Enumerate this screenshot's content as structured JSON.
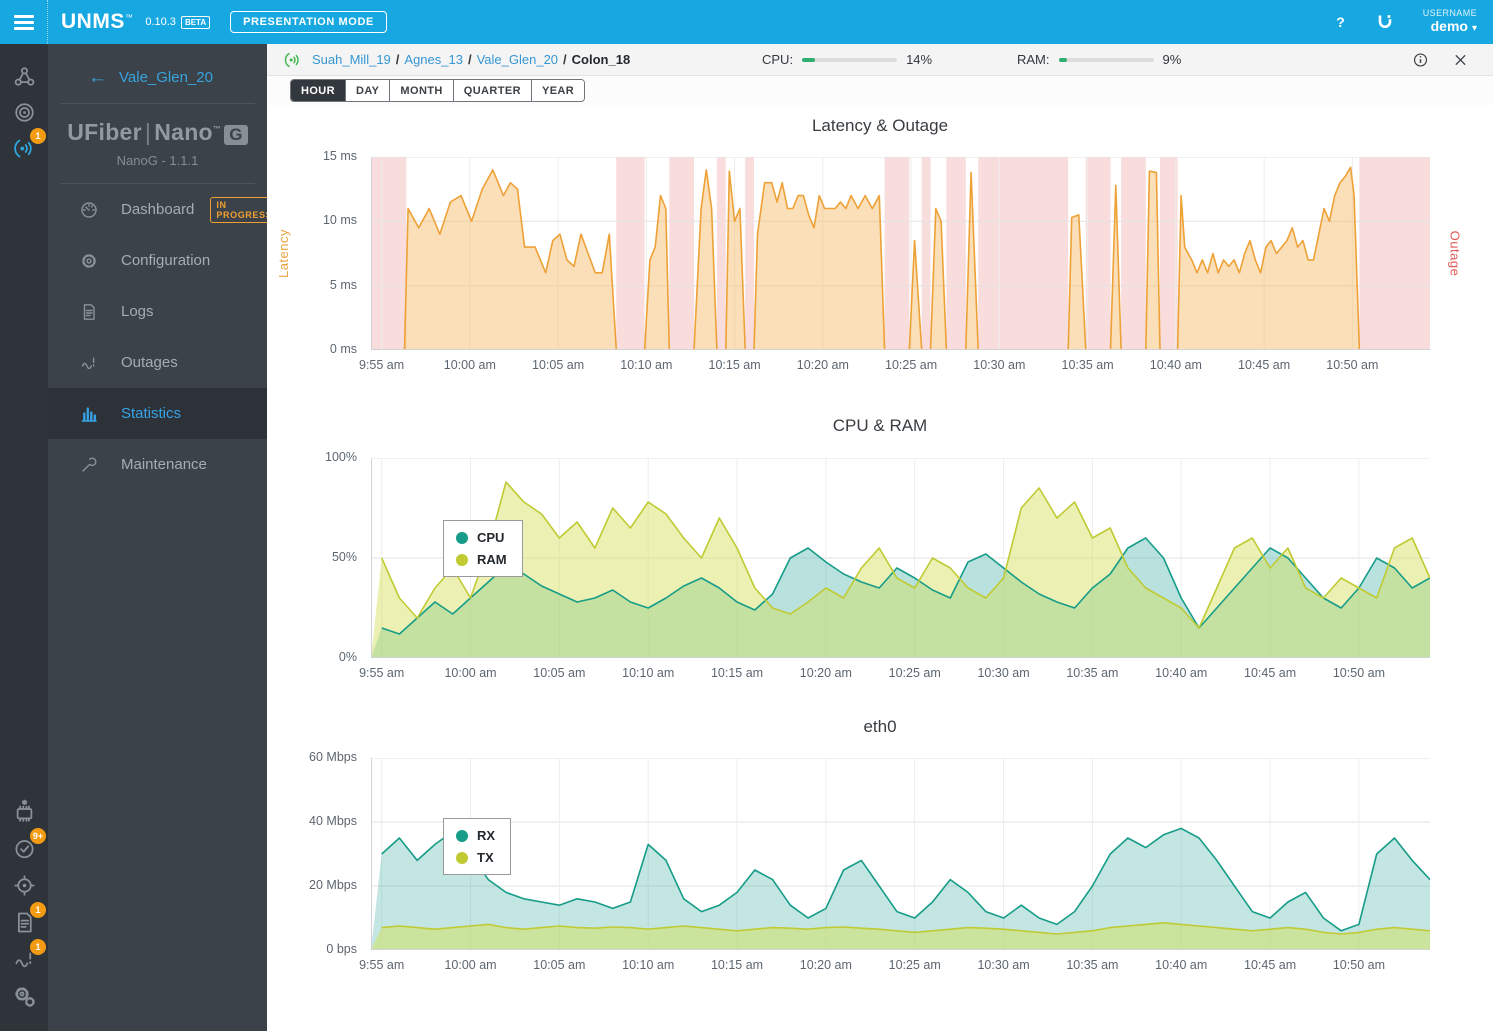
{
  "colors": {
    "topbar_blue": "#18a8e1",
    "badge_orange": "#f29b13",
    "link_blue": "#3596d3",
    "active_blue": "#36a3e8",
    "progress_green": "#2fae71",
    "outage_pink": "#f9dcdc",
    "latency_orange": "#eea136",
    "cpu_teal": "#169c88",
    "ram_yellow": "#c0ca33"
  },
  "topbar": {
    "brand": "UNMS",
    "brand_tm": "™",
    "version": "0.10.3",
    "beta_badge": "BETA",
    "presentation_mode": "PRESENTATION MODE",
    "help": "?",
    "username_label": "USERNAME",
    "username": "demo"
  },
  "sidebar_rail": {
    "top_icons": [
      {
        "name": "sites",
        "icon": "sites"
      },
      {
        "name": "devices",
        "icon": "devices"
      },
      {
        "name": "antenna",
        "icon": "antenna",
        "active": true,
        "badge": "1"
      }
    ],
    "bottom_icons": [
      {
        "name": "firmware",
        "icon": "firmware"
      },
      {
        "name": "tasks",
        "icon": "tasks",
        "badge": "9+"
      },
      {
        "name": "discover",
        "icon": "discover"
      },
      {
        "name": "device-logs",
        "icon": "logs",
        "badge": "1"
      },
      {
        "name": "outages",
        "icon": "outages",
        "badge": "1"
      },
      {
        "name": "settings",
        "icon": "settings"
      }
    ]
  },
  "device_panel": {
    "back_label": "Vale_Glen_20",
    "logo_primary": "UFiber",
    "logo_divider": "|",
    "logo_secondary": "Nano",
    "logo_tm": "™",
    "logo_badge": "G",
    "device_model": "NanoG - 1.1.1",
    "menu": [
      {
        "label": "Dashboard",
        "icon": "dashboard",
        "badge": "IN PROGRESS"
      },
      {
        "label": "Configuration",
        "icon": "configuration"
      },
      {
        "label": "Logs",
        "icon": "logs"
      },
      {
        "label": "Outages",
        "icon": "outages"
      },
      {
        "label": "Statistics",
        "icon": "statistics",
        "active": true
      },
      {
        "label": "Maintenance",
        "icon": "maintenance"
      }
    ]
  },
  "device_header": {
    "breadcrumbs": [
      {
        "label": "Suah_Mill_19",
        "link": true
      },
      {
        "label": "Agnes_13",
        "link": true
      },
      {
        "label": "Vale_Glen_20",
        "link": true
      },
      {
        "label": "Colon_18",
        "link": false
      }
    ],
    "cpu_label": "CPU:",
    "cpu_value": "14%",
    "cpu_percent": 14,
    "ram_label": "RAM:",
    "ram_value": "9%",
    "ram_percent": 9
  },
  "tabs": [
    {
      "label": "HOUR",
      "active": true
    },
    {
      "label": "DAY"
    },
    {
      "label": "MONTH"
    },
    {
      "label": "QUARTER"
    },
    {
      "label": "YEAR"
    }
  ],
  "chart_data": [
    {
      "id": "latency",
      "type": "area",
      "title": "Latency & Outage",
      "ylabel_left": "Latency",
      "ylabel_left_color": "#e8a33d",
      "ylabel_right": "Outage",
      "ylabel_right_color": "#e05a5a",
      "ylim": [
        0,
        15
      ],
      "yticks": [
        {
          "v": 0,
          "label": "0 ms"
        },
        {
          "v": 5,
          "label": "5 ms"
        },
        {
          "v": 10,
          "label": "10 ms"
        },
        {
          "v": 15,
          "label": "15 ms"
        }
      ],
      "x_domain": [
        -0.6,
        59.4
      ],
      "xticks_t": [
        0,
        5,
        10,
        15,
        20,
        25,
        30,
        35,
        40,
        45,
        50,
        55
      ],
      "xtick_labels": [
        "9:55 am",
        "10:00 am",
        "10:05 am",
        "10:10 am",
        "10:15 am",
        "10:20 am",
        "10:25 am",
        "10:30 am",
        "10:35 am",
        "10:40 am",
        "10:45 am",
        "10:50 am"
      ],
      "outage_color": "#f9dcdc",
      "outage_bands": [
        [
          -0.6,
          1.4
        ],
        [
          13.3,
          14.9
        ],
        [
          16.3,
          17.7
        ],
        [
          19.0,
          19.5
        ],
        [
          20.6,
          21.1
        ],
        [
          28.5,
          29.9
        ],
        [
          30.6,
          31.1
        ],
        [
          32.0,
          33.1
        ],
        [
          33.8,
          38.9
        ],
        [
          39.9,
          41.3
        ],
        [
          41.9,
          43.3
        ],
        [
          44.1,
          45.1
        ],
        [
          55.4,
          59.4
        ]
      ],
      "series": [
        {
          "name": "Latency",
          "color": "#eea136",
          "fill": "rgba(247,185,98,0.45)",
          "points": [
            [
              0,
              0
            ],
            [
              1.3,
              0
            ],
            [
              1.5,
              11
            ],
            [
              2.1,
              9.5
            ],
            [
              2.7,
              11
            ],
            [
              3.3,
              9
            ],
            [
              3.9,
              11.5
            ],
            [
              4.5,
              12
            ],
            [
              5.1,
              10
            ],
            [
              5.7,
              12.5
            ],
            [
              6.3,
              14
            ],
            [
              6.9,
              12
            ],
            [
              7.3,
              13
            ],
            [
              7.7,
              12.5
            ],
            [
              8.1,
              8
            ],
            [
              8.7,
              8
            ],
            [
              9.3,
              6
            ],
            [
              9.7,
              8.5
            ],
            [
              10.1,
              9
            ],
            [
              10.5,
              7
            ],
            [
              10.9,
              6.5
            ],
            [
              11.3,
              9
            ],
            [
              11.7,
              7.5
            ],
            [
              12.1,
              6
            ],
            [
              12.5,
              6
            ],
            [
              12.9,
              9
            ],
            [
              13.3,
              0
            ],
            [
              14.9,
              0
            ],
            [
              15.2,
              7
            ],
            [
              15.5,
              8
            ],
            [
              15.8,
              12
            ],
            [
              16.1,
              11
            ],
            [
              16.3,
              0
            ],
            [
              17.7,
              0
            ],
            [
              18.1,
              11
            ],
            [
              18.4,
              14
            ],
            [
              18.7,
              11
            ],
            [
              19,
              0
            ],
            [
              19.5,
              0
            ],
            [
              19.7,
              13.9
            ],
            [
              20,
              10
            ],
            [
              20.3,
              11
            ],
            [
              20.6,
              0
            ],
            [
              21.1,
              0
            ],
            [
              21.3,
              9
            ],
            [
              21.7,
              13
            ],
            [
              22.1,
              13
            ],
            [
              22.4,
              11.5
            ],
            [
              22.7,
              13
            ],
            [
              23,
              11
            ],
            [
              23.3,
              11
            ],
            [
              23.6,
              12
            ],
            [
              23.9,
              12
            ],
            [
              24.2,
              10.5
            ],
            [
              24.5,
              9.5
            ],
            [
              24.8,
              12
            ],
            [
              25.1,
              11
            ],
            [
              25.4,
              11
            ],
            [
              25.7,
              11
            ],
            [
              26,
              11.5
            ],
            [
              26.3,
              11
            ],
            [
              26.6,
              12
            ],
            [
              27,
              11
            ],
            [
              27.4,
              12
            ],
            [
              27.8,
              11
            ],
            [
              28.2,
              12
            ],
            [
              28.5,
              0
            ],
            [
              29.9,
              0
            ],
            [
              30.2,
              8.5
            ],
            [
              30.6,
              0
            ],
            [
              31.1,
              0
            ],
            [
              31.4,
              11
            ],
            [
              31.7,
              10
            ],
            [
              32,
              0
            ],
            [
              33.1,
              0
            ],
            [
              33.4,
              13.8
            ],
            [
              33.8,
              0
            ],
            [
              38.9,
              0
            ],
            [
              39.1,
              10.3
            ],
            [
              39.5,
              10.5
            ],
            [
              39.9,
              0
            ],
            [
              41.3,
              0
            ],
            [
              41.6,
              12.8
            ],
            [
              41.9,
              0
            ],
            [
              43.3,
              0
            ],
            [
              43.5,
              13.9
            ],
            [
              43.9,
              13.8
            ],
            [
              44.1,
              0
            ],
            [
              45.1,
              0
            ],
            [
              45.3,
              12
            ],
            [
              45.5,
              8
            ],
            [
              45.9,
              7
            ],
            [
              46.2,
              6
            ],
            [
              46.5,
              7
            ],
            [
              46.8,
              6
            ],
            [
              47.1,
              7.5
            ],
            [
              47.4,
              6
            ],
            [
              47.7,
              7
            ],
            [
              48,
              6.5
            ],
            [
              48.3,
              7
            ],
            [
              48.6,
              6
            ],
            [
              48.9,
              7.5
            ],
            [
              49.2,
              8.5
            ],
            [
              49.5,
              7
            ],
            [
              49.8,
              6
            ],
            [
              50.1,
              8
            ],
            [
              50.4,
              8.5
            ],
            [
              50.7,
              7.5
            ],
            [
              51,
              8
            ],
            [
              51.3,
              8.5
            ],
            [
              51.6,
              9.5
            ],
            [
              51.9,
              8
            ],
            [
              52.2,
              8.5
            ],
            [
              52.5,
              7
            ],
            [
              52.8,
              7
            ],
            [
              53.1,
              9
            ],
            [
              53.4,
              11
            ],
            [
              53.7,
              10
            ],
            [
              54,
              12
            ],
            [
              54.3,
              13
            ],
            [
              54.6,
              13.5
            ],
            [
              54.9,
              14.2
            ],
            [
              55.1,
              12
            ],
            [
              55.4,
              0
            ],
            [
              59.4,
              0
            ]
          ]
        }
      ]
    },
    {
      "id": "cpu_ram",
      "type": "area",
      "title": "CPU & RAM",
      "ylim": [
        0,
        100
      ],
      "yticks": [
        {
          "v": 0,
          "label": "0%"
        },
        {
          "v": 50,
          "label": "50%"
        },
        {
          "v": 100,
          "label": "100%"
        }
      ],
      "x_domain": [
        -0.6,
        59
      ],
      "xticks_t": [
        0,
        5,
        10,
        15,
        20,
        25,
        30,
        35,
        40,
        45,
        50,
        55
      ],
      "xtick_labels": [
        "9:55 am",
        "10:00 am",
        "10:05 am",
        "10:10 am",
        "10:15 am",
        "10:20 am",
        "10:25 am",
        "10:30 am",
        "10:35 am",
        "10:40 am",
        "10:45 am",
        "10:50 am"
      ],
      "legend": [
        "CPU",
        "RAM"
      ],
      "series": [
        {
          "name": "CPU",
          "color": "#169c88",
          "fill": "rgba(38,166,154,0.32)",
          "values": [
            15,
            12,
            20,
            28,
            22,
            30,
            38,
            46,
            42,
            36,
            32,
            28,
            30,
            34,
            28,
            25,
            30,
            36,
            40,
            35,
            28,
            24,
            32,
            50,
            55,
            48,
            42,
            38,
            35,
            45,
            40,
            34,
            30,
            48,
            52,
            45,
            38,
            32,
            28,
            25,
            35,
            42,
            55,
            60,
            50,
            30,
            15,
            25,
            35,
            45,
            55,
            50,
            40,
            30,
            25,
            35,
            50,
            45,
            35,
            40
          ]
        },
        {
          "name": "RAM",
          "color": "#c0ca33",
          "fill": "rgba(212,225,87,0.45)",
          "values": [
            50,
            30,
            20,
            35,
            45,
            30,
            55,
            88,
            78,
            72,
            60,
            68,
            55,
            75,
            65,
            78,
            72,
            60,
            50,
            70,
            55,
            35,
            25,
            22,
            28,
            35,
            30,
            45,
            55,
            40,
            35,
            50,
            45,
            35,
            30,
            40,
            75,
            85,
            70,
            78,
            60,
            65,
            45,
            35,
            30,
            25,
            15,
            35,
            55,
            60,
            45,
            55,
            35,
            30,
            40,
            35,
            30,
            55,
            60,
            40
          ]
        }
      ]
    },
    {
      "id": "eth0",
      "type": "area",
      "title": "eth0",
      "ylim": [
        0,
        60
      ],
      "yticks": [
        {
          "v": 0,
          "label": "0 bps"
        },
        {
          "v": 20,
          "label": "20 Mbps"
        },
        {
          "v": 40,
          "label": "40 Mbps"
        },
        {
          "v": 60,
          "label": "60 Mbps"
        }
      ],
      "x_domain": [
        -0.6,
        59
      ],
      "xticks_t": [
        0,
        5,
        10,
        15,
        20,
        25,
        30,
        35,
        40,
        45,
        50,
        55
      ],
      "xtick_labels": [
        "9:55 am",
        "10:00 am",
        "10:05 am",
        "10:10 am",
        "10:15 am",
        "10:20 am",
        "10:25 am",
        "10:30 am",
        "10:35 am",
        "10:40 am",
        "10:45 am",
        "10:50 am"
      ],
      "legend": [
        "RX",
        "TX"
      ],
      "series": [
        {
          "name": "RX",
          "color": "#169c88",
          "fill": "rgba(38,166,154,0.28)",
          "values": [
            30,
            35,
            28,
            33,
            37,
            30,
            22,
            18,
            16,
            15,
            14,
            16,
            15,
            13,
            15,
            33,
            28,
            16,
            12,
            14,
            18,
            25,
            22,
            14,
            10,
            13,
            25,
            28,
            20,
            12,
            10,
            15,
            22,
            18,
            12,
            10,
            14,
            10,
            8,
            12,
            20,
            30,
            35,
            32,
            36,
            38,
            35,
            28,
            20,
            12,
            10,
            15,
            18,
            10,
            6,
            8,
            30,
            35,
            28,
            22
          ]
        },
        {
          "name": "TX",
          "color": "#c0ca33",
          "fill": "rgba(212,225,87,0.5)",
          "values": [
            7,
            7.5,
            7,
            6.5,
            7,
            7.5,
            8,
            7,
            6.5,
            7,
            7.5,
            7,
            6.8,
            7.2,
            7,
            6.5,
            7,
            7.5,
            7,
            6.5,
            6,
            6.5,
            7,
            6.8,
            6.5,
            7,
            7.2,
            6.8,
            6.5,
            6,
            5.5,
            6,
            6.5,
            7,
            6.8,
            6.5,
            6,
            5.5,
            5,
            5.5,
            6,
            7,
            7.5,
            8,
            8.5,
            8,
            7.5,
            7,
            6.5,
            6,
            6.5,
            7,
            6.5,
            5.5,
            5,
            5.5,
            6.5,
            7,
            6.5,
            6
          ]
        }
      ]
    }
  ]
}
